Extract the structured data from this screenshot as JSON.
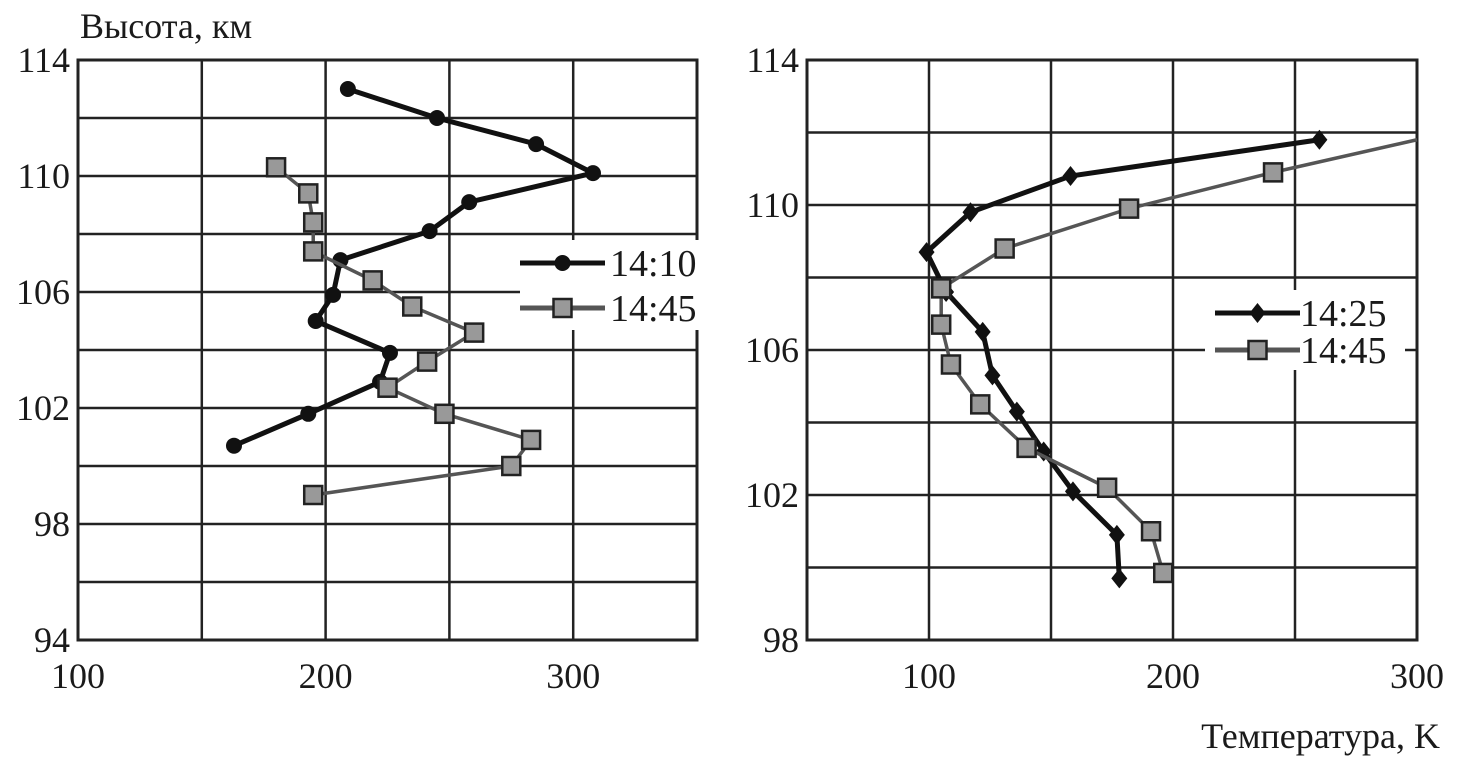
{
  "chart_data": [
    {
      "type": "line",
      "ylabel": "Высота, км",
      "xlabel": "",
      "xlim": [
        100,
        350
      ],
      "ylim": [
        94,
        114
      ],
      "x_ticks": [
        100,
        200,
        300
      ],
      "y_ticks": [
        114,
        110,
        106,
        102,
        98,
        94
      ],
      "x_grid_step": 50,
      "y_grid_step": 2,
      "grid": true,
      "legend_position": "right",
      "series": [
        {
          "name": "14:10",
          "color": "#111111",
          "marker": "circle",
          "points": [
            [
              209,
              113.0
            ],
            [
              245,
              112.0
            ],
            [
              285,
              111.1
            ],
            [
              308,
              110.1
            ],
            [
              258,
              109.1
            ],
            [
              242,
              108.1
            ],
            [
              206,
              107.1
            ],
            [
              203,
              105.9
            ],
            [
              196,
              105.0
            ],
            [
              226,
              103.9
            ],
            [
              222,
              102.9
            ],
            [
              193,
              101.8
            ],
            [
              163,
              100.7
            ]
          ]
        },
        {
          "name": "14:45",
          "color": "#555555",
          "marker": "square",
          "points": [
            [
              180,
              110.3
            ],
            [
              193,
              109.4
            ],
            [
              195,
              108.4
            ],
            [
              195,
              107.4
            ],
            [
              219,
              106.4
            ],
            [
              235,
              105.5
            ],
            [
              260,
              104.6
            ],
            [
              241,
              103.6
            ],
            [
              225,
              102.7
            ],
            [
              248,
              101.8
            ],
            [
              283,
              100.9
            ],
            [
              275,
              100.0
            ],
            [
              195,
              99.0
            ]
          ]
        }
      ]
    },
    {
      "type": "line",
      "ylabel": "",
      "xlabel": "Температура, K",
      "xlim": [
        50,
        300
      ],
      "ylim": [
        98,
        114
      ],
      "x_ticks": [
        100,
        200,
        300
      ],
      "y_ticks": [
        114,
        110,
        106,
        102,
        98
      ],
      "x_grid_step": 50,
      "y_grid_step": 2,
      "grid": true,
      "legend_position": "right",
      "series": [
        {
          "name": "14:25",
          "color": "#111111",
          "marker": "diamond",
          "points": [
            [
              260,
              111.8
            ],
            [
              158,
              110.8
            ],
            [
              117,
              109.8
            ],
            [
              99,
              108.7
            ],
            [
              107,
              107.6
            ],
            [
              122,
              106.5
            ],
            [
              126,
              105.3
            ],
            [
              136,
              104.3
            ],
            [
              147,
              103.2
            ],
            [
              159,
              102.1
            ],
            [
              177,
              100.9
            ],
            [
              178,
              99.7
            ]
          ]
        },
        {
          "name": "14:45",
          "color": "#555555",
          "marker": "square",
          "points": [
            [
              300,
              111.8
            ],
            [
              241,
              110.9
            ],
            [
              182,
              109.9
            ],
            [
              131,
              108.8
            ],
            [
              105,
              107.7
            ],
            [
              105,
              106.7
            ],
            [
              109,
              105.6
            ],
            [
              121,
              104.5
            ],
            [
              140,
              103.3
            ],
            [
              173,
              102.2
            ],
            [
              191,
              101.0
            ],
            [
              196,
              99.85
            ]
          ]
        }
      ]
    }
  ]
}
